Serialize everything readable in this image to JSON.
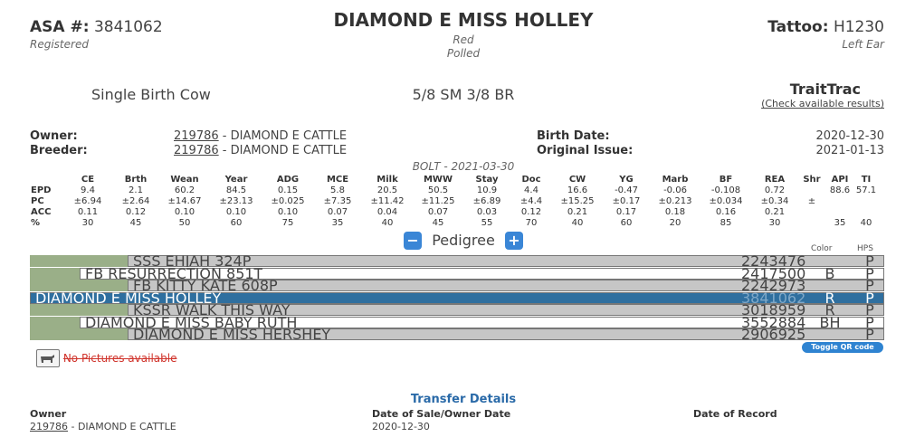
{
  "header": {
    "asa_label": "ASA #:",
    "asa_number": "3841062",
    "registered": "Registered",
    "animal_name": "DIAMOND E MISS HOLLEY",
    "color": "Red",
    "polled": "Polled",
    "tattoo_label": "Tattoo:",
    "tattoo_value": "H1230",
    "tattoo_location": "Left Ear"
  },
  "summary": {
    "birth_type": "Single Birth Cow",
    "breed": "5/8 SM 3/8 BR",
    "traittrac_title": "TraitTrac",
    "traittrac_link": "(Check available results)"
  },
  "ownership": {
    "owner_label": "Owner:",
    "owner_id": "219786",
    "owner_name": "- DIAMOND E CATTLE",
    "breeder_label": "Breeder:",
    "breeder_id": "219786",
    "breeder_name": "- DIAMOND E CATTLE",
    "birth_date_label": "Birth Date:",
    "birth_date": "2020-12-30",
    "original_issue_label": "Original Issue:",
    "original_issue": "2021-01-13"
  },
  "epd": {
    "caption": "BOLT - 2021-03-30",
    "columns": [
      "",
      "CE",
      "Brth",
      "Wean",
      "Year",
      "ADG",
      "MCE",
      "Milk",
      "MWW",
      "Stay",
      "Doc",
      "CW",
      "YG",
      "Marb",
      "BF",
      "REA",
      "Shr",
      "API",
      "TI"
    ],
    "rows": [
      [
        "EPD",
        "9.4",
        "2.1",
        "60.2",
        "84.5",
        "0.15",
        "5.8",
        "20.5",
        "50.5",
        "10.9",
        "4.4",
        "16.6",
        "-0.47",
        "-0.06",
        "-0.108",
        "0.72",
        "",
        "88.6",
        "57.1"
      ],
      [
        "PC",
        "±6.94",
        "±2.64",
        "±14.67",
        "±23.13",
        "±0.025",
        "±7.35",
        "±11.42",
        "±11.25",
        "±6.89",
        "±4.4",
        "±15.25",
        "±0.17",
        "±0.213",
        "±0.034",
        "±0.34",
        "±",
        "",
        ""
      ],
      [
        "ACC",
        "0.11",
        "0.12",
        "0.10",
        "0.10",
        "0.10",
        "0.07",
        "0.04",
        "0.07",
        "0.03",
        "0.12",
        "0.21",
        "0.17",
        "0.18",
        "0.16",
        "0.21",
        "",
        "",
        ""
      ],
      [
        "%",
        "30",
        "45",
        "50",
        "60",
        "75",
        "35",
        "40",
        "45",
        "55",
        "70",
        "40",
        "60",
        "20",
        "85",
        "30",
        "",
        "35",
        "40"
      ]
    ]
  },
  "pedigree": {
    "minus_label": "−",
    "title": "Pedigree",
    "plus_label": "+",
    "col_color": "Color",
    "col_hps": "HPS",
    "rows": [
      {
        "name": "SSS EHJAH 324P",
        "reg": "2243476",
        "color": "",
        "hps": "P"
      },
      {
        "name": "FB RESURRECTION 851T",
        "reg": "2417500",
        "color": "B",
        "hps": "P"
      },
      {
        "name": "FB KITTY KATE 608P",
        "reg": "2242973",
        "color": "",
        "hps": "P"
      },
      {
        "name": "DIAMOND E MISS HOLLEY",
        "reg": "3841062",
        "color": "R",
        "hps": "P"
      },
      {
        "name": "KSSR WALK THIS WAY",
        "reg": "3018959",
        "color": "R",
        "hps": "P"
      },
      {
        "name": "DIAMOND E MISS BABY RUTH",
        "reg": "3552884",
        "color": "BH",
        "hps": "P"
      },
      {
        "name": "DIAMOND E MISS HERSHEY",
        "reg": "2906925",
        "color": "",
        "hps": "P"
      }
    ]
  },
  "pictures": {
    "none_text": "No Pictures available",
    "qr_button": "Toggle QR code"
  },
  "transfer": {
    "title": "Transfer Details",
    "owner_label": "Owner",
    "owner_id": "219786",
    "owner_name": "- DIAMOND E CATTLE",
    "sale_label": "Date of Sale/Owner Date",
    "sale_date": "2020-12-30",
    "record_label": "Date of Record"
  }
}
